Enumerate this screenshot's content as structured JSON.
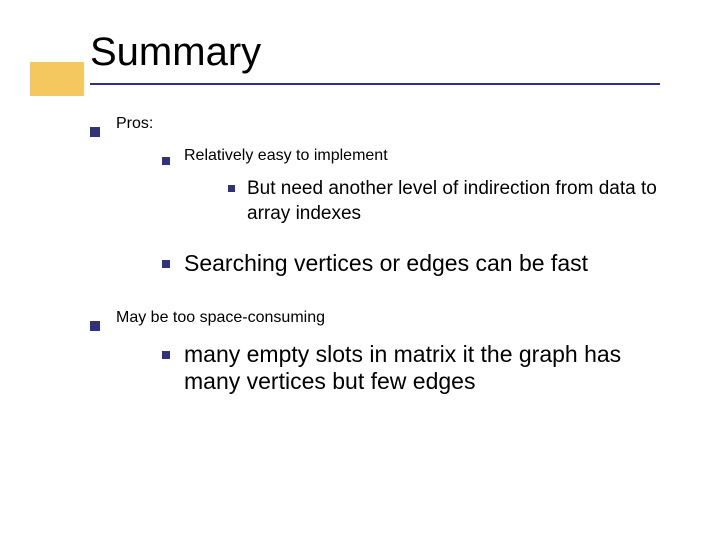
{
  "colors": {
    "accent_box": "#f5c85f",
    "underline": "#323278",
    "bullet": "#323278",
    "text": "#000000",
    "background": "#ffffff"
  },
  "typography": {
    "family": "Verdana",
    "title_size": 40,
    "lvl1_size": 27,
    "lvl2_size": 23,
    "lvl3_size": 19
  },
  "title": "Summary",
  "items": [
    {
      "text": "Pros:",
      "children": [
        {
          "text": "Relatively easy to implement",
          "children": [
            {
              "text": "But need another level of indirection from data to array indexes"
            }
          ]
        },
        {
          "text": "Searching vertices or edges can be fast"
        }
      ]
    },
    {
      "text": "May be too space-consuming",
      "children": [
        {
          "text": "many empty slots in matrix it the graph has many vertices but few edges"
        }
      ]
    }
  ]
}
